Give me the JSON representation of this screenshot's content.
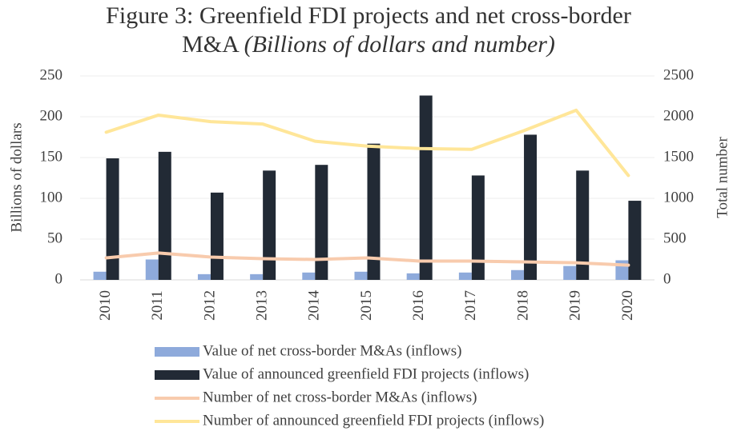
{
  "chart_data": {
    "type": "bar_line",
    "title": "Figure 3: Greenfield FDI projects and net cross-border M&A",
    "subtitle": "(Billions of dollars and number)",
    "y_label": "Billions of dollars",
    "y2_label": "Total number",
    "categories": [
      "2010",
      "2011",
      "2012",
      "2013",
      "2014",
      "2015",
      "2016",
      "2017",
      "2018",
      "2019",
      "2020"
    ],
    "series": [
      {
        "name": "Value of net cross-border M&As (inflows)",
        "type": "bar",
        "color": "#8eaadb",
        "values": [
          10,
          25,
          7,
          7,
          9,
          10,
          8,
          9,
          12,
          17,
          24
        ]
      },
      {
        "name": "Value of announced greenfield FDI projects (inflows)",
        "type": "bar",
        "color": "#222a35",
        "values": [
          149,
          157,
          107,
          134,
          141,
          167,
          226,
          128,
          178,
          134,
          97
        ]
      },
      {
        "name": "Number of net cross-border M&As (inflows)",
        "type": "line",
        "axis": "y2",
        "color": "#f8cbad",
        "values": [
          270,
          330,
          280,
          260,
          250,
          270,
          230,
          230,
          220,
          210,
          180
        ]
      },
      {
        "name": "Number of announced greenfield FDI projects (inflows)",
        "type": "line",
        "axis": "y2",
        "color": "#ffe699",
        "values": [
          1810,
          2020,
          1940,
          1910,
          1700,
          1640,
          1610,
          1600,
          1830,
          2080,
          1280
        ]
      }
    ],
    "ylim": [
      0,
      250
    ],
    "yticks": [
      0,
      50,
      100,
      150,
      200,
      250
    ],
    "y2lim": [
      0,
      2500
    ],
    "y2ticks": [
      0,
      500,
      1000,
      1500,
      2000,
      2500
    ],
    "grid": true,
    "legend": "bottom"
  }
}
